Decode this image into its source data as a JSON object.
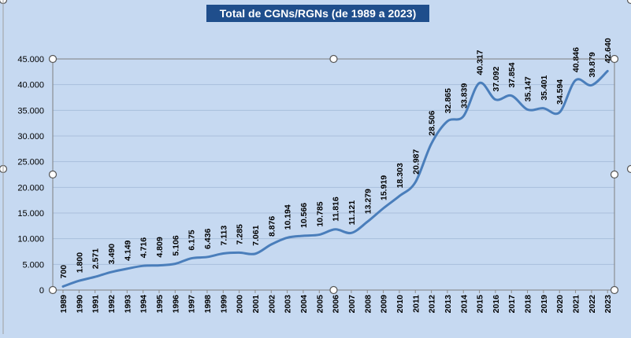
{
  "chart_data": {
    "type": "line",
    "title": "Total de CGNs/RGNs (de 1989 a 2023)",
    "xlabel": "",
    "ylabel": "",
    "ylim": [
      0,
      45000
    ],
    "y_ticks": [
      "0",
      "5.000",
      "10.000",
      "15.000",
      "20.000",
      "25.000",
      "30.000",
      "35.000",
      "40.000",
      "45.000"
    ],
    "grid": true,
    "legend": "none",
    "categories": [
      "1989",
      "1990",
      "1991",
      "1992",
      "1993",
      "1994",
      "1995",
      "1996",
      "1997",
      "1998",
      "1999",
      "2000",
      "2001",
      "2002",
      "2003",
      "2004",
      "2005",
      "2006",
      "2007",
      "2008",
      "2009",
      "2010",
      "2011",
      "2012",
      "2013",
      "2014",
      "2015",
      "2016",
      "2017",
      "2018",
      "2019",
      "2020",
      "2021",
      "2022",
      "2023"
    ],
    "values": [
      700,
      1800,
      2571,
      3490,
      4149,
      4716,
      4809,
      5106,
      6175,
      6436,
      7113,
      7285,
      7061,
      8876,
      10194,
      10566,
      10785,
      11816,
      11121,
      13279,
      15919,
      18303,
      20987,
      28506,
      32865,
      33839,
      40317,
      37092,
      37854,
      35147,
      35401,
      34594,
      40846,
      39879,
      42640
    ],
    "data_labels": [
      "700",
      "1.800",
      "2.571",
      "3.490",
      "4.149",
      "4.716",
      "4.809",
      "5.106",
      "6.175",
      "6.436",
      "7.113",
      "7.285",
      "7.061",
      "8.876",
      "10.194",
      "10.566",
      "10.785",
      "11.816",
      "11.121",
      "13.279",
      "15.919",
      "18.303",
      "20.987",
      "28.506",
      "32.865",
      "33.839",
      "40.317",
      "37.092",
      "37.854",
      "35.147",
      "35.401",
      "34.594",
      "40.846",
      "39.879",
      "42.640"
    ],
    "colors": {
      "line": "#4a7ebb",
      "background": "#c6d9f1",
      "grid": "#a9bfdb",
      "title_bg": "#1f4e8c"
    }
  }
}
